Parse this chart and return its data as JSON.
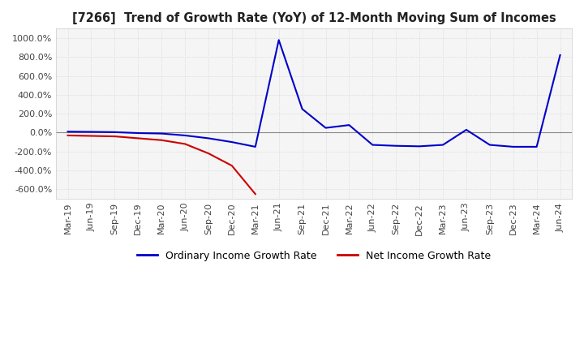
{
  "title": "[7266]  Trend of Growth Rate (YoY) of 12-Month Moving Sum of Incomes",
  "ylim": [
    -700,
    1100
  ],
  "yticks": [
    -600,
    -400,
    -200,
    0,
    200,
    400,
    600,
    800,
    1000
  ],
  "background_color": "#ffffff",
  "plot_background_color": "#f5f5f5",
  "grid_color": "#ffffff",
  "line1_color": "#0000cc",
  "line2_color": "#cc0000",
  "line1_label": "Ordinary Income Growth Rate",
  "line2_label": "Net Income Growth Rate",
  "x_labels": [
    "Mar-19",
    "Jun-19",
    "Sep-19",
    "Dec-19",
    "Mar-20",
    "Jun-20",
    "Sep-20",
    "Dec-20",
    "Mar-21",
    "Jun-21",
    "Sep-21",
    "Dec-21",
    "Mar-22",
    "Jun-22",
    "Sep-22",
    "Dec-22",
    "Mar-23",
    "Jun-23",
    "Sep-23",
    "Dec-23",
    "Mar-24",
    "Jun-24"
  ],
  "ordinary_income": [
    10,
    8,
    5,
    -5,
    -10,
    -30,
    -60,
    -100,
    -150,
    980,
    250,
    50,
    80,
    -130,
    -140,
    -145,
    -130,
    30,
    -130,
    -150,
    -150,
    820
  ],
  "net_income": [
    -30,
    -35,
    -40,
    -60,
    -80,
    -120,
    -220,
    -350,
    -650,
    null,
    null,
    null,
    null,
    null,
    null,
    null,
    null,
    null,
    null,
    null,
    null,
    null
  ]
}
